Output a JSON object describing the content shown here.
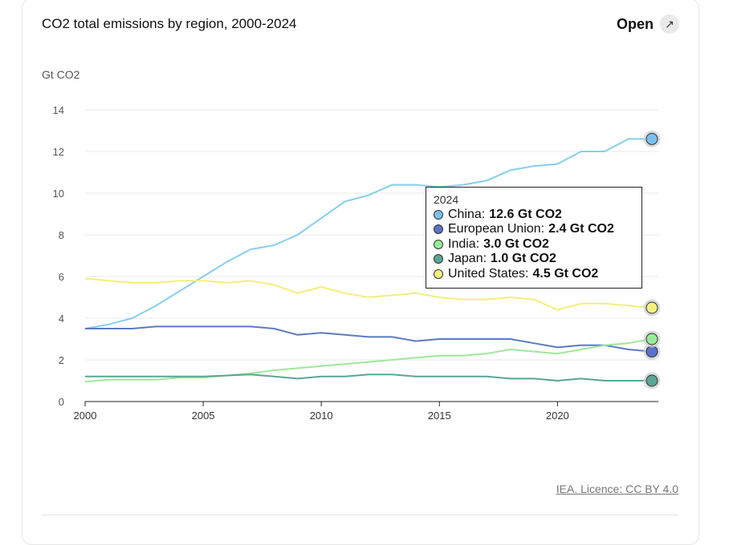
{
  "header": {
    "title": "CO2 total emissions by region, 2000-2024",
    "open_label": "Open",
    "open_icon": "external-expand-icon"
  },
  "source_label": "IEA. Licence: CC BY 4.0",
  "tooltip": {
    "year": "2024"
  },
  "chart_data": {
    "type": "line",
    "title": "CO2 total emissions by region, 2000-2024",
    "ylabel": "Gt CO2",
    "xlabel": "",
    "xlim": [
      2000,
      2024
    ],
    "ylim": [
      0,
      14
    ],
    "yticks": [
      0,
      2,
      4,
      6,
      8,
      10,
      12,
      14
    ],
    "xticks": [
      2000,
      2005,
      2010,
      2015,
      2020
    ],
    "grid": true,
    "x": [
      2000,
      2001,
      2002,
      2003,
      2004,
      2005,
      2006,
      2007,
      2008,
      2009,
      2010,
      2011,
      2012,
      2013,
      2014,
      2015,
      2016,
      2017,
      2018,
      2019,
      2020,
      2021,
      2022,
      2023,
      2024
    ],
    "series": [
      {
        "name": "China",
        "color": "#87ceeb",
        "marker": "#7cc0f0",
        "tooltip_value": "12.6 Gt CO2",
        "values": [
          3.5,
          3.7,
          4.0,
          4.6,
          5.3,
          6.0,
          6.7,
          7.3,
          7.5,
          8.0,
          8.8,
          9.6,
          9.9,
          10.4,
          10.4,
          10.3,
          10.4,
          10.6,
          11.1,
          11.3,
          11.4,
          12.0,
          12.0,
          12.6,
          12.6
        ]
      },
      {
        "name": "European Union",
        "color": "#5b7bc0",
        "marker": "#5b72c8",
        "tooltip_value": "2.4 Gt CO2",
        "values": [
          3.5,
          3.5,
          3.5,
          3.6,
          3.6,
          3.6,
          3.6,
          3.6,
          3.5,
          3.2,
          3.3,
          3.2,
          3.1,
          3.1,
          2.9,
          3.0,
          3.0,
          3.0,
          3.0,
          2.8,
          2.6,
          2.7,
          2.7,
          2.5,
          2.4
        ]
      },
      {
        "name": "India",
        "color": "#9ee89a",
        "marker": "#98ec98",
        "tooltip_value": "3.0 Gt CO2",
        "values": [
          0.95,
          1.05,
          1.05,
          1.05,
          1.15,
          1.15,
          1.25,
          1.35,
          1.5,
          1.6,
          1.7,
          1.8,
          1.9,
          2.0,
          2.1,
          2.2,
          2.2,
          2.3,
          2.5,
          2.4,
          2.3,
          2.5,
          2.7,
          2.8,
          3.0
        ]
      },
      {
        "name": "Japan",
        "color": "#5aa596",
        "marker": "#5aa596",
        "tooltip_value": "1.0 Gt CO2",
        "values": [
          1.2,
          1.2,
          1.2,
          1.2,
          1.2,
          1.2,
          1.25,
          1.3,
          1.2,
          1.1,
          1.2,
          1.2,
          1.3,
          1.3,
          1.2,
          1.2,
          1.2,
          1.2,
          1.1,
          1.1,
          1.0,
          1.1,
          1.0,
          1.0,
          1.0
        ]
      },
      {
        "name": "United States",
        "color": "#f2ef7a",
        "marker": "#f4f080",
        "tooltip_value": "4.5 Gt CO2",
        "values": [
          5.9,
          5.8,
          5.7,
          5.7,
          5.8,
          5.8,
          5.7,
          5.8,
          5.6,
          5.2,
          5.5,
          5.2,
          5.0,
          5.1,
          5.2,
          5.0,
          4.9,
          4.9,
          5.0,
          4.9,
          4.4,
          4.7,
          4.7,
          4.6,
          4.5
        ]
      }
    ]
  }
}
